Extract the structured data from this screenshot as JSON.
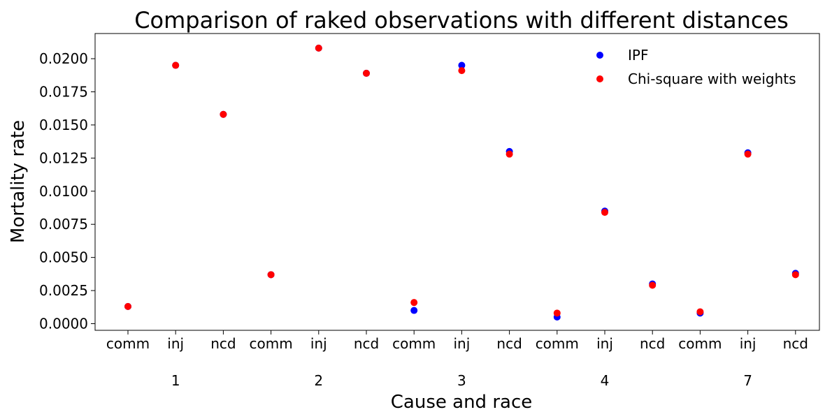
{
  "chart_data": {
    "type": "scatter",
    "title": "Comparison of raked observations with different distances",
    "xlabel": "Cause and race",
    "ylabel": "Mortality rate",
    "x_tick_labels": [
      "comm",
      "inj",
      "ncd",
      "comm",
      "inj",
      "ncd",
      "comm",
      "inj",
      "ncd",
      "comm",
      "inj",
      "ncd",
      "comm",
      "inj",
      "ncd"
    ],
    "x_group_labels": [
      "1",
      "2",
      "3",
      "4",
      "7"
    ],
    "y_tick_labels": [
      "0.0000",
      "0.0025",
      "0.0050",
      "0.0075",
      "0.0100",
      "0.0125",
      "0.0150",
      "0.0175",
      "0.0200"
    ],
    "y_ticks": [
      0.0,
      0.0025,
      0.005,
      0.0075,
      0.01,
      0.0125,
      0.015,
      0.0175,
      0.02
    ],
    "ylim": [
      -0.0005,
      0.0219
    ],
    "grid": false,
    "legend_position": "top-right",
    "series": [
      {
        "name": "IPF",
        "color": "#0000ff",
        "values": [
          0.0013,
          0.0195,
          0.0158,
          0.0037,
          0.0208,
          0.0189,
          0.001,
          0.0195,
          0.013,
          0.0005,
          0.0085,
          0.003,
          0.0008,
          0.0129,
          0.0038
        ]
      },
      {
        "name": "Chi-square with weights",
        "color": "#ff0000",
        "values": [
          0.0013,
          0.0195,
          0.0158,
          0.0037,
          0.0208,
          0.0189,
          0.0016,
          0.0191,
          0.0128,
          0.0008,
          0.0084,
          0.0029,
          0.0009,
          0.0128,
          0.0037
        ]
      }
    ]
  }
}
